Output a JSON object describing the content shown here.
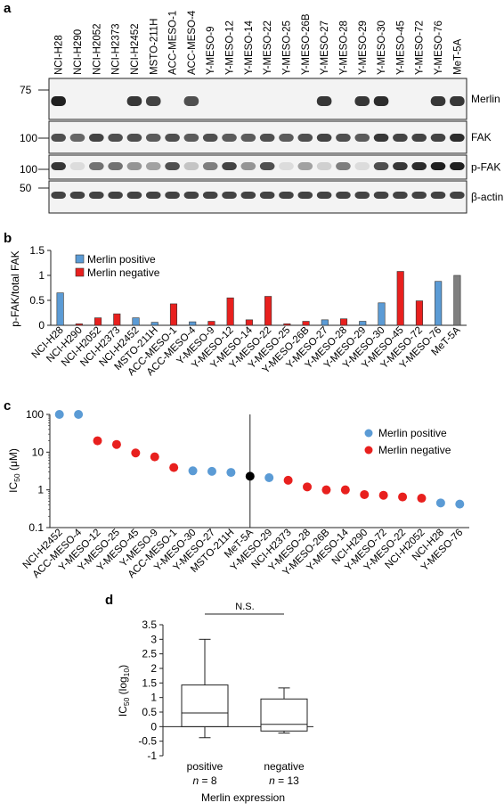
{
  "panels": {
    "a": {
      "letter": "a",
      "lanes": [
        "NCI-H28",
        "NCI-H290",
        "NCI-H2052",
        "NCI-H2373",
        "NCI-H2452",
        "MSTO-211H",
        "ACC-MESO-1",
        "ACC-MESO-4",
        "Y-MESO-9",
        "Y-MESO-12",
        "Y-MESO-14",
        "Y-MESO-22",
        "Y-MESO-25",
        "Y-MESO-26B",
        "Y-MESO-27",
        "Y-MESO-28",
        "Y-MESO-29",
        "Y-MESO-30",
        "Y-MESO-45",
        "Y-MESO-72",
        "Y-MESO-76",
        "MeT-5A"
      ],
      "blots": [
        {
          "label": "Merlin",
          "marker": "75",
          "intensity": [
            0.95,
            0,
            0,
            0,
            0.85,
            0.8,
            0,
            0.75,
            0,
            0,
            0,
            0,
            0,
            0,
            0.85,
            0,
            0.85,
            0.9,
            0,
            0,
            0.85,
            0.85
          ]
        },
        {
          "label": "FAK",
          "marker": "100",
          "intensity": [
            0.75,
            0.65,
            0.8,
            0.75,
            0.75,
            0.7,
            0.75,
            0.7,
            0.75,
            0.7,
            0.7,
            0.75,
            0.7,
            0.75,
            0.8,
            0.75,
            0.7,
            0.85,
            0.8,
            0.8,
            0.8,
            0.9
          ]
        },
        {
          "label": "p-FAK",
          "marker": "100",
          "intensity": [
            0.85,
            0.15,
            0.6,
            0.6,
            0.45,
            0.4,
            0.75,
            0.25,
            0.55,
            0.8,
            0.45,
            0.75,
            0.15,
            0.4,
            0.2,
            0.55,
            0.15,
            0.75,
            0.85,
            0.9,
            0.95,
            0.95
          ]
        },
        {
          "label": "β-actin",
          "marker": "50",
          "intensity": [
            0.8,
            0.8,
            0.8,
            0.8,
            0.8,
            0.8,
            0.8,
            0.8,
            0.8,
            0.8,
            0.8,
            0.8,
            0.8,
            0.8,
            0.8,
            0.8,
            0.8,
            0.8,
            0.8,
            0.8,
            0.8,
            0.8
          ]
        }
      ]
    },
    "b": {
      "letter": "b",
      "legend": [
        {
          "label": "Merlin positive",
          "color": "#5b9bd5"
        },
        {
          "label": "Merlin negative",
          "color": "#e8201e"
        }
      ],
      "control_color": "#7f7f7f"
    },
    "c": {
      "letter": "c",
      "legend": [
        {
          "label": "Merlin positive",
          "color": "#5b9bd5"
        },
        {
          "label": "Merlin negative",
          "color": "#e8201e"
        }
      ],
      "control_color": "#000000"
    },
    "d": {
      "letter": "d",
      "significance": "N.S.",
      "group_labels": [
        {
          "name": "positive",
          "n_label": "n",
          "n_value": "= 8"
        },
        {
          "name": "negative",
          "n_label": "n",
          "n_value": "= 13"
        }
      ]
    }
  },
  "chart_data": [
    {
      "type": "bar",
      "ylabel": "p-FAK/total FAK",
      "ylim": [
        0,
        1.5
      ],
      "yticks": [
        "0",
        "0.5",
        "1",
        "1.5"
      ],
      "categories": [
        "NCI-H28",
        "NCI-H290",
        "NCI-H2052",
        "NCI-H2373",
        "NCI-H2452",
        "MSTO-211H",
        "ACC-MESO-1",
        "ACC-MESO-4",
        "Y-MESO-9",
        "Y-MESO-12",
        "Y-MESO-14",
        "Y-MESO-22",
        "Y-MESO-25",
        "Y-MESO-26B",
        "Y-MESO-27",
        "Y-MESO-28",
        "Y-MESO-29",
        "Y-MESO-30",
        "Y-MESO-45",
        "Y-MESO-72",
        "Y-MESO-76",
        "MeT-5A"
      ],
      "values": [
        0.65,
        0.03,
        0.15,
        0.23,
        0.15,
        0.06,
        0.43,
        0.07,
        0.08,
        0.55,
        0.11,
        0.58,
        0.03,
        0.08,
        0.11,
        0.13,
        0.08,
        0.45,
        1.08,
        0.49,
        0.88,
        1.0
      ],
      "groups": [
        "positive",
        "negative",
        "negative",
        "negative",
        "positive",
        "positive",
        "negative",
        "positive",
        "negative",
        "negative",
        "negative",
        "negative",
        "negative",
        "negative",
        "positive",
        "negative",
        "positive",
        "positive",
        "negative",
        "negative",
        "positive",
        "control"
      ],
      "legend_position": "top-left"
    },
    {
      "type": "scatter",
      "ylabel": "IC",
      "ylabel_sub": "50",
      "ylabel_unit": " (μM)",
      "yscale": "log",
      "ylim": [
        0.1,
        100
      ],
      "yticks": [
        "0.1",
        "1",
        "10",
        "100"
      ],
      "categories": [
        "NCI-H2452",
        "ACC-MESO-4",
        "Y-MESO-12",
        "Y-MESO-25",
        "Y-MESO-45",
        "Y-MESO-9",
        "ACC-MESO-1",
        "Y-MESO-30",
        "Y-MESO-27",
        "MSTO-211H",
        "MeT-5A",
        "Y-MESO-29",
        "NCI-H2373",
        "Y-MESO-28",
        "Y-MESO-26B",
        "Y-MESO-14",
        "NCI-H290",
        "Y-MESO-72",
        "Y-MESO-22",
        "NCI-H2052",
        "NCI-H28",
        "Y-MESO-76"
      ],
      "values": [
        100,
        100,
        20,
        16,
        9.5,
        7.5,
        3.9,
        3.2,
        3.1,
        2.9,
        2.3,
        2.1,
        1.8,
        1.2,
        1.0,
        1.0,
        0.75,
        0.72,
        0.65,
        0.6,
        0.45,
        0.42
      ],
      "groups": [
        "positive",
        "positive",
        "negative",
        "negative",
        "negative",
        "negative",
        "negative",
        "positive",
        "positive",
        "positive",
        "control",
        "positive",
        "negative",
        "negative",
        "negative",
        "negative",
        "negative",
        "negative",
        "negative",
        "negative",
        "positive",
        "positive"
      ],
      "legend_position": "top-right"
    },
    {
      "type": "box",
      "ylabel": "IC",
      "ylabel_sub": "50",
      "ylabel_unit": " (log",
      "ylabel_unit_sub": "10",
      "ylabel_unit_end": ")",
      "xlabel": "Merlin expression",
      "ylim": [
        -1,
        3.5
      ],
      "yticks": [
        "-1",
        "-0.5",
        "0",
        "0.5",
        "1",
        "1.5",
        "2",
        "2.5",
        "3",
        "3.5"
      ],
      "series": [
        {
          "name": "positive",
          "whisker_low": -0.38,
          "q1": 0.0,
          "median": 0.47,
          "q3": 1.43,
          "whisker_high": 3.0
        },
        {
          "name": "negative",
          "whisker_low": -0.22,
          "q1": -0.15,
          "median": 0.08,
          "q3": 0.95,
          "whisker_high": 1.33
        }
      ]
    }
  ]
}
